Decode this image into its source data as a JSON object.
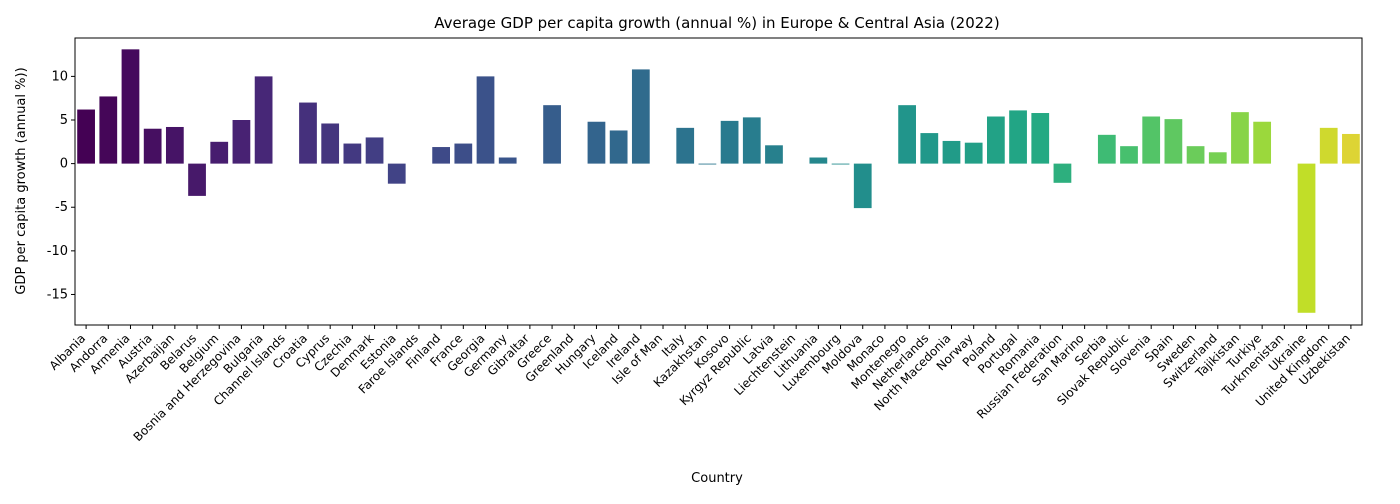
{
  "chart_data": {
    "type": "bar",
    "title": "Average GDP per capita growth (annual %) in Europe & Central Asia (2022)",
    "xlabel": "Country",
    "ylabel": "GDP per capita growth (annual %))",
    "ylim": [
      -18.5,
      14.4
    ],
    "yticks": [
      -15,
      -10,
      -5,
      0,
      5,
      10
    ],
    "grid": false,
    "palette": "viridis",
    "categories": [
      "Albania",
      "Andorra",
      "Armenia",
      "Austria",
      "Azerbaijan",
      "Belarus",
      "Belgium",
      "Bosnia and Herzegovina",
      "Bulgaria",
      "Channel Islands",
      "Croatia",
      "Cyprus",
      "Czechia",
      "Denmark",
      "Estonia",
      "Faroe Islands",
      "Finland",
      "France",
      "Georgia",
      "Germany",
      "Gibraltar",
      "Greece",
      "Greenland",
      "Hungary",
      "Iceland",
      "Ireland",
      "Isle of Man",
      "Italy",
      "Kazakhstan",
      "Kosovo",
      "Kyrgyz Republic",
      "Latvia",
      "Liechtenstein",
      "Lithuania",
      "Luxembourg",
      "Moldova",
      "Monaco",
      "Montenegro",
      "Netherlands",
      "North Macedonia",
      "Norway",
      "Poland",
      "Portugal",
      "Romania",
      "Russian Federation",
      "San Marino",
      "Serbia",
      "Slovak Republic",
      "Slovenia",
      "Spain",
      "Sweden",
      "Switzerland",
      "Tajikistan",
      "Turkiye",
      "Turkmenistan",
      "Ukraine",
      "United Kingdom",
      "Uzbekistan"
    ],
    "values": [
      6.2,
      7.7,
      13.1,
      4.0,
      4.2,
      -3.7,
      2.5,
      5.0,
      10.0,
      null,
      7.0,
      4.6,
      2.3,
      3.0,
      -2.3,
      null,
      1.9,
      2.3,
      10.0,
      0.7,
      null,
      6.7,
      null,
      4.8,
      3.8,
      10.8,
      null,
      4.1,
      -0.1,
      4.9,
      5.3,
      2.1,
      null,
      0.7,
      -0.1,
      -5.1,
      null,
      6.7,
      3.5,
      2.6,
      2.4,
      5.4,
      6.1,
      5.8,
      -2.2,
      null,
      3.3,
      2.0,
      5.4,
      5.1,
      2.0,
      1.3,
      5.9,
      4.8,
      null,
      -17.1,
      4.1,
      3.4
    ]
  }
}
